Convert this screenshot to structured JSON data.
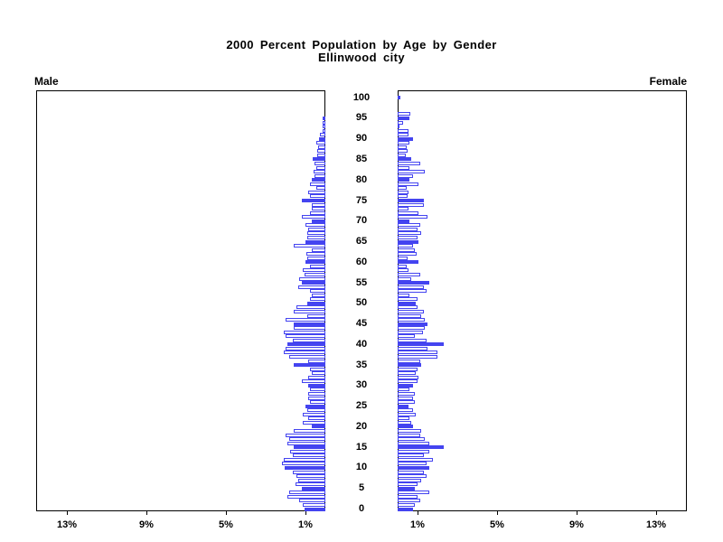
{
  "title": {
    "line1": "2000 Percent Population by Age by Gender",
    "line2": "Ellinwood city"
  },
  "side_labels": {
    "left": "Male",
    "right": "Female"
  },
  "colors": {
    "bar_blue": "#4444f0",
    "axis_black": "#000000",
    "background": "#ffffff"
  },
  "axis": {
    "age_tick_labels": [
      "0",
      "5",
      "10",
      "15",
      "20",
      "25",
      "30",
      "35",
      "40",
      "45",
      "50",
      "55",
      "60",
      "65",
      "70",
      "75",
      "80",
      "85",
      "90",
      "95",
      "100"
    ],
    "pct_ticks": [
      {
        "value": 1,
        "label": "1%"
      },
      {
        "value": 5,
        "label": "5%"
      },
      {
        "value": 9,
        "label": "9%"
      },
      {
        "value": 13,
        "label": "13%"
      }
    ],
    "pct_ticks_left_display_order": [
      "13%",
      "9%",
      "5%",
      "1%"
    ],
    "pct_ticks_right_display_order": [
      "1%",
      "5%",
      "9%",
      "13%"
    ]
  },
  "chart_data": {
    "type": "bar",
    "subtype": "population-pyramid",
    "title": "2000 Percent Population by Age by Gender",
    "subtitle": "Ellinwood city",
    "units": "percent",
    "age_min": 0,
    "age_max": 100,
    "age_step": 1,
    "solid_fill_every_age": 5,
    "xlim_each_side_percent": [
      0,
      14.5
    ],
    "legend_position": "none",
    "grid": false,
    "series": [
      {
        "name": "Male",
        "side": "left",
        "values": [
          1.05,
          1.15,
          1.3,
          1.9,
          1.8,
          1.2,
          1.5,
          1.35,
          1.45,
          1.65,
          2.05,
          2.2,
          2.1,
          1.65,
          1.75,
          1.6,
          1.9,
          1.8,
          2.0,
          1.6,
          0.7,
          1.15,
          0.85,
          1.15,
          0.9,
          1.0,
          0.75,
          0.85,
          0.85,
          0.75,
          0.85,
          1.2,
          0.85,
          0.7,
          0.75,
          1.6,
          0.85,
          1.8,
          2.1,
          2.0,
          1.9,
          1.65,
          2.0,
          2.1,
          1.6,
          1.6,
          2.0,
          0.9,
          1.6,
          1.45,
          0.9,
          0.75,
          0.7,
          0.75,
          1.35,
          1.2,
          1.3,
          1.05,
          1.15,
          0.75,
          1.0,
          0.9,
          0.95,
          0.7,
          1.6,
          1.0,
          0.9,
          0.9,
          0.85,
          1.0,
          0.7,
          1.2,
          0.75,
          0.7,
          0.7,
          1.2,
          0.75,
          0.85,
          0.45,
          0.75,
          0.7,
          0.55,
          0.6,
          0.45,
          0.55,
          0.65,
          0.4,
          0.4,
          0.35,
          0.45,
          0.3,
          0.25,
          0.12,
          0.12,
          0.12,
          0.12,
          0,
          0,
          0,
          0,
          0
        ]
      },
      {
        "name": "Female",
        "side": "right",
        "values": [
          0.75,
          0.85,
          1.15,
          1.0,
          1.6,
          0.85,
          1.0,
          1.2,
          1.45,
          1.3,
          1.6,
          1.45,
          1.75,
          1.3,
          1.6,
          2.3,
          1.6,
          1.35,
          1.15,
          1.2,
          0.75,
          0.7,
          0.6,
          0.9,
          0.75,
          0.55,
          0.85,
          0.75,
          0.85,
          0.6,
          0.75,
          1.0,
          1.05,
          0.9,
          1.0,
          1.2,
          1.15,
          2.0,
          2.0,
          1.5,
          2.3,
          1.45,
          0.85,
          1.25,
          1.35,
          1.5,
          1.35,
          1.2,
          1.3,
          1.0,
          0.9,
          1.0,
          0.6,
          1.45,
          1.3,
          1.6,
          0.7,
          1.15,
          0.55,
          0.45,
          1.05,
          0.5,
          0.95,
          0.85,
          0.75,
          1.05,
          1.0,
          1.2,
          1.0,
          1.15,
          0.6,
          1.5,
          1.05,
          0.55,
          1.3,
          1.3,
          0.5,
          0.55,
          0.45,
          1.05,
          0.6,
          0.75,
          1.35,
          0.6,
          1.15,
          0.7,
          0.4,
          0.5,
          0.45,
          0.6,
          0.75,
          0.55,
          0.55,
          0.05,
          0.25,
          0.6,
          0.65,
          0,
          0,
          0,
          0.12
        ]
      }
    ]
  }
}
